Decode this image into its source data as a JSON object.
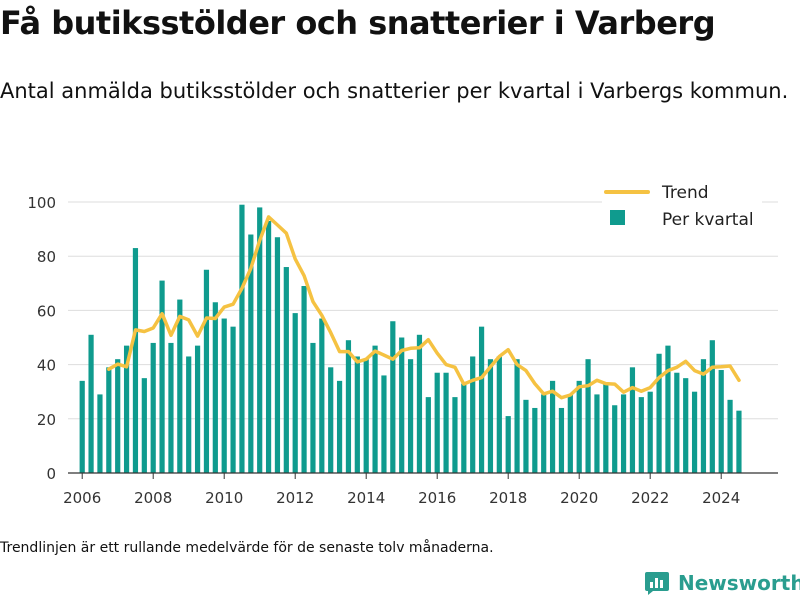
{
  "title": "Få butiksstölder och snatterier i Varberg",
  "subtitle": "Antal anmälda butiksstölder och snatterier per kvartal i Varbergs kommun.",
  "footnote": "Trendlinjen är ett rullande medelvärde för de senaste tolv månaderna.",
  "brand": {
    "name": "Newsworthy",
    "icon": "newsworthy-logo-icon",
    "color": "#2a9d8f"
  },
  "colors": {
    "bar": "#0f9b8e",
    "trend": "#f5c242",
    "grid": "#dddddd",
    "axis": "#333333",
    "text": "#333333"
  },
  "chart_data": {
    "type": "bar",
    "ylim": [
      0,
      100
    ],
    "yticks": [
      0,
      20,
      40,
      60,
      80,
      100
    ],
    "xlim": [
      2005.6,
      2025.6
    ],
    "xticks": [
      2006,
      2008,
      2010,
      2012,
      2014,
      2016,
      2018,
      2020,
      2022,
      2024
    ],
    "grid": true,
    "legend_position": "top-right",
    "series": [
      {
        "name": "Per kvartal",
        "type": "bar",
        "start_year": 2006,
        "start_quarter": 1,
        "values": [
          34,
          51,
          29,
          39,
          42,
          47,
          83,
          35,
          48,
          71,
          48,
          64,
          43,
          47,
          75,
          63,
          57,
          54,
          99,
          88,
          98,
          93,
          87,
          76,
          59,
          69,
          48,
          57,
          39,
          34,
          49,
          43,
          42,
          47,
          36,
          56,
          50,
          42,
          51,
          28,
          37,
          37,
          28,
          33,
          43,
          54,
          42,
          43,
          21,
          42,
          27,
          24,
          29,
          34,
          24,
          29,
          34,
          42,
          29,
          33,
          25,
          29,
          39,
          28,
          30,
          44,
          47,
          37,
          35,
          30,
          42,
          49,
          38,
          27,
          23
        ]
      },
      {
        "name": "Trend",
        "type": "line",
        "start_year": 2006,
        "start_quarter": 4,
        "values": [
          38.3,
          40.2,
          39.2,
          52.8,
          52.2,
          53.5,
          58.8,
          50.8,
          57.8,
          56.5,
          50.5,
          57.2,
          57.0,
          61.2,
          62.3,
          68.2,
          75.5,
          85.8,
          94.5,
          91.5,
          88.5,
          79.0,
          72.8,
          63.2,
          58.2,
          51.8,
          44.8,
          44.8,
          41.0,
          42.0,
          45.0,
          43.5,
          42.0,
          45.2,
          46.0,
          46.2,
          49.2,
          44.2,
          40.0,
          39.0,
          32.8,
          34.2,
          35.2,
          39.2,
          43.0,
          45.5,
          40.0,
          37.8,
          33.0,
          29.2,
          30.2,
          27.8,
          28.8,
          31.8,
          32.2,
          34.2,
          33.0,
          32.8,
          29.8,
          31.5,
          30.2,
          31.5,
          35.2,
          37.8,
          39.0,
          41.2,
          37.8,
          36.5,
          39.0,
          39.2,
          39.5,
          34.2
        ]
      }
    ]
  }
}
